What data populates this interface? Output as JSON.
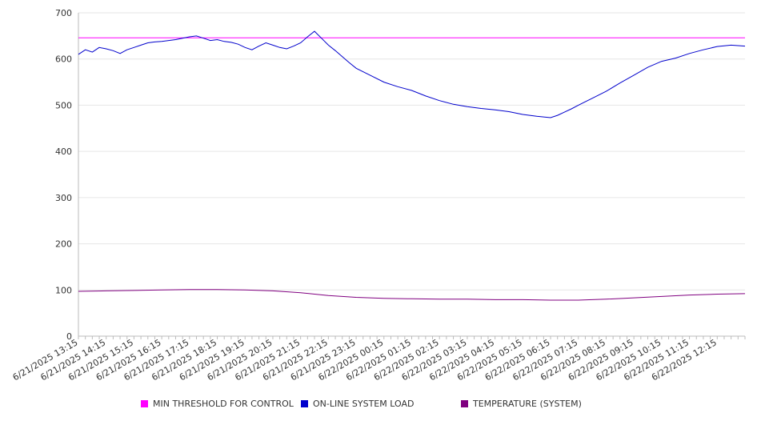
{
  "chart_data": {
    "type": "line",
    "title": "",
    "xlabel": "",
    "ylabel": "",
    "ylim": [
      0,
      700
    ],
    "yticks": [
      "0",
      "100",
      "200",
      "300",
      "400",
      "500",
      "600",
      "700"
    ],
    "x_tick_labels": [
      "6/21/2025 13:15",
      "6/21/2025 14:15",
      "6/21/2025 15:15",
      "6/21/2025 16:15",
      "6/21/2025 17:15",
      "6/21/2025 18:15",
      "6/21/2025 19:15",
      "6/21/2025 20:15",
      "6/21/2025 21:15",
      "6/21/2025 22:15",
      "6/21/2025 23:15",
      "6/22/2025 00:15",
      "6/22/2025 01:15",
      "6/22/2025 02:15",
      "6/22/2025 03:15",
      "6/22/2025 04:15",
      "6/22/2025 05:15",
      "6/22/2025 06:15",
      "6/22/2025 07:15",
      "6/22/2025 08:15",
      "6/22/2025 09:15",
      "6/22/2025 10:15",
      "6/22/2025 11:15",
      "6/22/2025 12:15"
    ],
    "grid": "horizontal",
    "legend_position": "bottom",
    "series": [
      {
        "name": "MIN THRESHOLD FOR CONTROL",
        "color": "#ff00ff",
        "x": [
          0,
          24
        ],
        "values": [
          646,
          646
        ]
      },
      {
        "name": "ON-LINE SYSTEM LOAD",
        "color": "#0000cc",
        "x": [
          0,
          0.25,
          0.5,
          0.75,
          1.0,
          1.25,
          1.5,
          1.75,
          2.0,
          2.25,
          2.5,
          2.75,
          3.0,
          3.25,
          3.5,
          3.75,
          4.0,
          4.25,
          4.5,
          4.75,
          5.0,
          5.25,
          5.5,
          5.75,
          6.0,
          6.25,
          6.5,
          6.75,
          7.0,
          7.25,
          7.5,
          7.75,
          8.0,
          8.25,
          8.5,
          8.75,
          9.0,
          9.25,
          9.5,
          9.75,
          10.0,
          10.5,
          11.0,
          11.5,
          12.0,
          12.5,
          13.0,
          13.5,
          14.0,
          14.5,
          15.0,
          15.5,
          16.0,
          16.5,
          17.0,
          17.25,
          17.5,
          17.75,
          18.0,
          18.5,
          19.0,
          19.5,
          20.0,
          20.5,
          21.0,
          21.5,
          22.0,
          22.5,
          23.0,
          23.5,
          24.0
        ],
        "values": [
          610,
          620,
          615,
          625,
          622,
          618,
          612,
          620,
          625,
          630,
          635,
          637,
          638,
          640,
          642,
          645,
          648,
          650,
          645,
          640,
          642,
          638,
          636,
          632,
          625,
          620,
          628,
          635,
          630,
          625,
          622,
          628,
          635,
          648,
          660,
          645,
          630,
          618,
          605,
          592,
          580,
          565,
          550,
          540,
          532,
          520,
          510,
          502,
          497,
          493,
          490,
          486,
          480,
          476,
          473,
          478,
          485,
          492,
          500,
          515,
          530,
          548,
          565,
          582,
          595,
          602,
          612,
          620,
          627,
          630,
          628
        ]
      },
      {
        "name": "TEMPERATURE (SYSTEM)",
        "color": "#800080",
        "x": [
          0,
          1,
          2,
          3,
          4,
          5,
          6,
          7,
          8,
          9,
          10,
          11,
          12,
          13,
          14,
          15,
          16,
          17,
          18,
          19,
          20,
          21,
          22,
          23,
          24
        ],
        "values": [
          97,
          98,
          99,
          100,
          101,
          101,
          100,
          98,
          94,
          88,
          84,
          82,
          81,
          80,
          80,
          79,
          79,
          78,
          78,
          80,
          83,
          86,
          89,
          91,
          92
        ]
      }
    ]
  }
}
